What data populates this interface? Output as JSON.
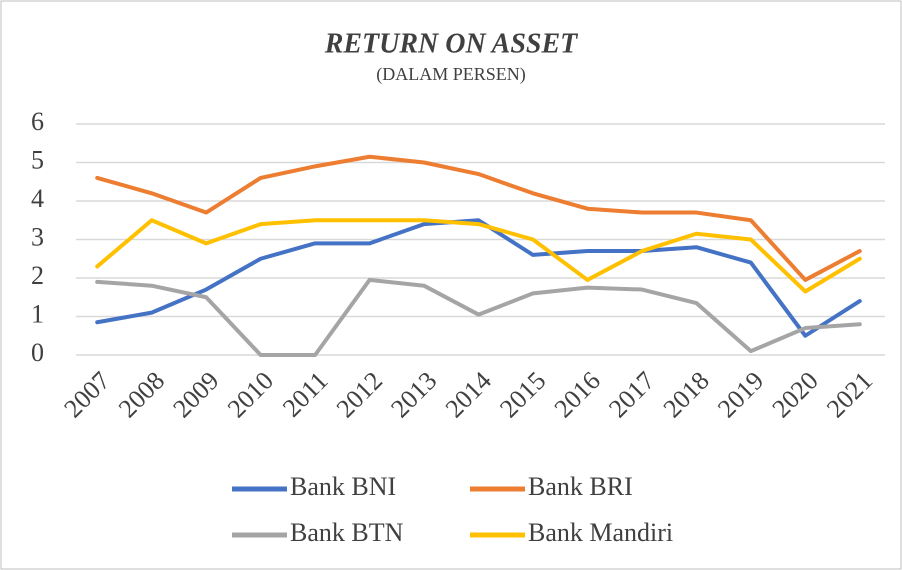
{
  "chart_data": {
    "type": "line",
    "title": "RETURN ON ASSET",
    "subtitle": "(DALAM PERSEN)",
    "categories": [
      "2007",
      "2008",
      "2009",
      "2010",
      "2011",
      "2012",
      "2013",
      "2014",
      "2015",
      "2016",
      "2017",
      "2018",
      "2019",
      "2020",
      "2021"
    ],
    "series": [
      {
        "name": "Bank BNI",
        "color": "#4472c4",
        "values": [
          0.85,
          1.1,
          1.7,
          2.5,
          2.9,
          2.9,
          3.4,
          3.5,
          2.6,
          2.7,
          2.7,
          2.8,
          2.4,
          0.5,
          1.4
        ]
      },
      {
        "name": "Bank BRI",
        "color": "#ed7d31",
        "values": [
          4.6,
          4.2,
          3.7,
          4.6,
          4.9,
          5.15,
          5.0,
          4.7,
          4.2,
          3.8,
          3.7,
          3.7,
          3.5,
          1.95,
          2.7
        ]
      },
      {
        "name": "Bank BTN",
        "color": "#a5a5a5",
        "values": [
          1.9,
          1.8,
          1.5,
          0.0,
          0.0,
          1.95,
          1.8,
          1.05,
          1.6,
          1.75,
          1.7,
          1.35,
          0.1,
          0.7,
          0.8
        ]
      },
      {
        "name": "Bank Mandiri",
        "color": "#ffc000",
        "values": [
          2.3,
          3.5,
          2.9,
          3.4,
          3.5,
          3.5,
          3.5,
          3.4,
          3.0,
          1.95,
          2.7,
          3.15,
          3.0,
          1.65,
          2.5
        ]
      }
    ],
    "ylim": [
      0,
      6
    ],
    "yticks": [
      0,
      1,
      2,
      3,
      4,
      5,
      6
    ],
    "grid": true,
    "legend": "bottom"
  }
}
